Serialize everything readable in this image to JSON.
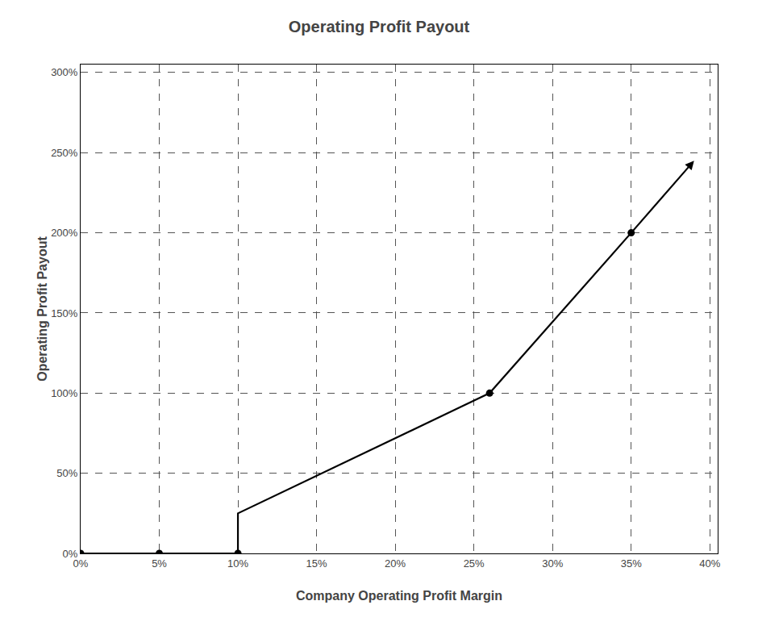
{
  "chart_data": {
    "type": "line",
    "title": "Operating Profit Payout",
    "xlabel": "Company Operating Profit Margin",
    "ylabel": "Operating Profit Payout",
    "series": [
      {
        "type": "line",
        "x": [
          0,
          0.05,
          0.1,
          0.1,
          0.26,
          0.35,
          0.39
        ],
        "values": [
          0,
          0,
          0,
          0.25,
          1.0,
          2.0,
          2.45
        ],
        "color": "#000000",
        "marker": "arrow"
      },
      {
        "type": "scatter",
        "x": [
          0,
          0.05,
          0.1,
          0.26,
          0.35
        ],
        "values": [
          0,
          0,
          0,
          1.0,
          2.0
        ],
        "color": "#000000",
        "marker": "circle"
      }
    ],
    "xlim": [
      0.0,
      0.405
    ],
    "ylim": [
      0.0,
      3.05
    ],
    "xticks": [
      {
        "value": 0,
        "label": "0%"
      },
      {
        "value": 0.05,
        "label": "5%"
      },
      {
        "value": 0.1,
        "label": "10%"
      },
      {
        "value": 0.15,
        "label": "15%"
      },
      {
        "value": 0.2,
        "label": "20%"
      },
      {
        "value": 0.25,
        "label": "25%"
      },
      {
        "value": 0.3,
        "label": "30%"
      },
      {
        "value": 0.35,
        "label": "35%"
      },
      {
        "value": 0.4,
        "label": "40%"
      }
    ],
    "yticks": [
      {
        "value": 0,
        "label": "0%"
      },
      {
        "value": 0.5,
        "label": "50%"
      },
      {
        "value": 1.0,
        "label": "100%"
      },
      {
        "value": 1.5,
        "label": "150%"
      },
      {
        "value": 2.0,
        "label": "200%"
      },
      {
        "value": 2.5,
        "label": "250%"
      },
      {
        "value": 3.0,
        "label": "300%"
      }
    ],
    "grid": true
  }
}
